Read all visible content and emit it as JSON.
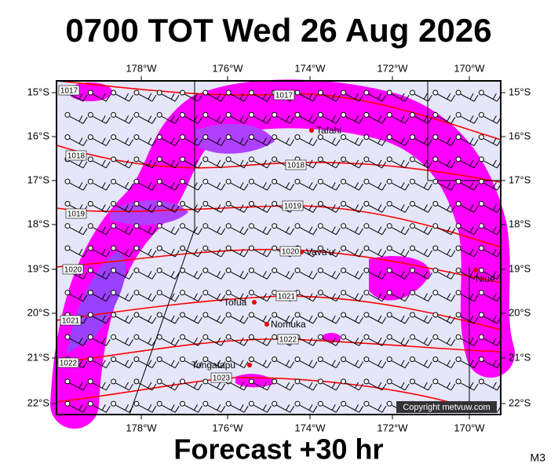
{
  "title": "0700 TOT Wed 26 Aug 2026",
  "footer": "Forecast +30 hr",
  "model": "M3",
  "copyright": "Copyright metvuw.com",
  "lon_labels": [
    "178°W",
    "176°W",
    "174°W",
    "172°W",
    "170°W"
  ],
  "lat_labels": [
    "15°S",
    "16°S",
    "17°S",
    "18°S",
    "19°S",
    "20°S",
    "21°S",
    "22°S"
  ],
  "places": [
    "Tafahi",
    "Vava'u",
    "Niue",
    "Tofua",
    "Nomuka",
    "Tongatapu"
  ],
  "isobar_labels": [
    "1017",
    "1017",
    "1018",
    "1018",
    "1019",
    "1019",
    "1020",
    "1020",
    "1021",
    "1021",
    "1022",
    "1022",
    "1023"
  ]
}
